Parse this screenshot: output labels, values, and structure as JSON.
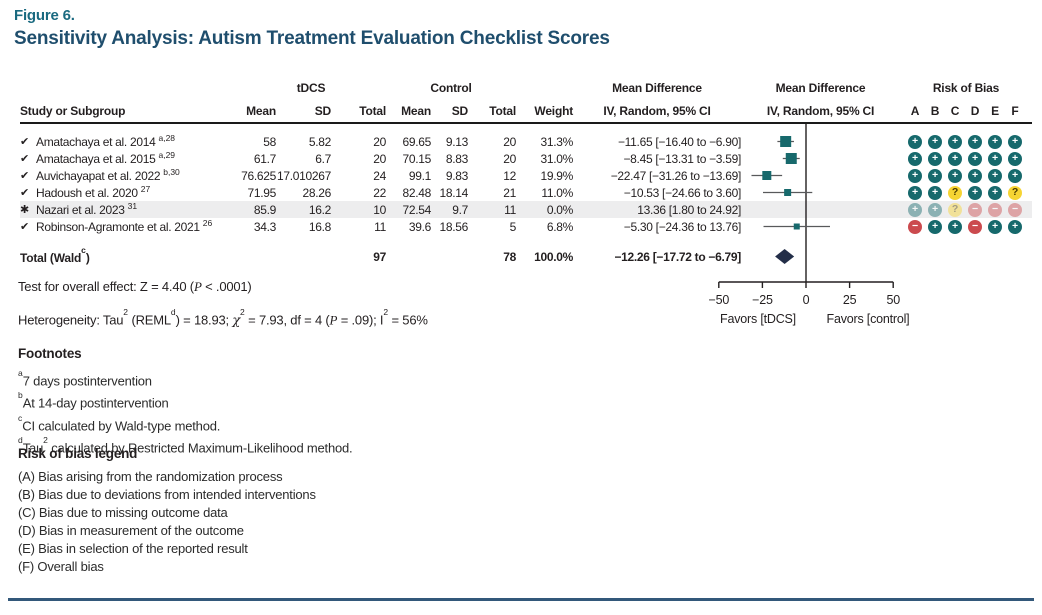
{
  "figure": {
    "label": "Figure 6.",
    "title": "Sensitivity Analysis: Autism Treatment Evaluation Checklist Scores"
  },
  "colors": {
    "label-color": "#1a6a80",
    "title-color": "#1f4e6d",
    "teal": "#16696c",
    "red": "#cb4a4e",
    "yellow": "#f6d433",
    "square": "#17696c",
    "diamond": "#232e48",
    "band": "#ededee",
    "navy-rule": "#33587a",
    "gray-line": "#58595b",
    "ink": "#231f20"
  },
  "table": {
    "group_headers": {
      "tdcs": "tDCS",
      "control": "Control"
    },
    "col_headers": {
      "study": "Study or Subgroup",
      "mean": "Mean",
      "sd": "SD",
      "total": "Total",
      "weight": "Weight",
      "md_title": "Mean Difference",
      "md_sub": "IV, Random, 95% CI",
      "rob_title": "Risk of Bias",
      "rob_letters": [
        "A",
        "B",
        "C",
        "D",
        "E",
        "F"
      ]
    },
    "rows": [
      {
        "marker": "✔",
        "name": "Amatachaya et al. 2014",
        "sup": "a,28",
        "tdcs_mean": "58",
        "tdcs_sd": "5.82",
        "tdcs_total": "20",
        "ctrl_mean": "69.65",
        "ctrl_sd": "9.13",
        "ctrl_total": "20",
        "weight": "31.3%",
        "md_text": "−11.65 [−16.40 to −6.90]",
        "bias": [
          "plus",
          "plus",
          "plus",
          "plus",
          "plus",
          "plus"
        ],
        "highlight": false,
        "faded": false
      },
      {
        "marker": "✔",
        "name": "Amatachaya et al. 2015",
        "sup": "a,29",
        "tdcs_mean": "61.7",
        "tdcs_sd": "6.7",
        "tdcs_total": "20",
        "ctrl_mean": "70.15",
        "ctrl_sd": "8.83",
        "ctrl_total": "20",
        "weight": "31.0%",
        "md_text": "−8.45 [−13.31 to −3.59]",
        "bias": [
          "plus",
          "plus",
          "plus",
          "plus",
          "plus",
          "plus"
        ],
        "highlight": false,
        "faded": false
      },
      {
        "marker": "✔",
        "name": "Auvichayapat et al. 2022",
        "sup": "b,30",
        "tdcs_mean": "76.625",
        "tdcs_sd": "17.010267",
        "tdcs_total": "24",
        "ctrl_mean": "99.1",
        "ctrl_sd": "9.83",
        "ctrl_total": "12",
        "weight": "19.9%",
        "md_text": "−22.47 [−31.26 to −13.69]",
        "bias": [
          "plus",
          "plus",
          "plus",
          "plus",
          "plus",
          "plus"
        ],
        "highlight": false,
        "faded": false
      },
      {
        "marker": "✔",
        "name": "Hadoush et al. 2020",
        "sup": "27",
        "tdcs_mean": "71.95",
        "tdcs_sd": "28.26",
        "tdcs_total": "22",
        "ctrl_mean": "82.48",
        "ctrl_sd": "18.14",
        "ctrl_total": "21",
        "weight": "11.0%",
        "md_text": "−10.53 [−24.66 to 3.60]",
        "bias": [
          "plus",
          "plus",
          "question",
          "plus",
          "plus",
          "question"
        ],
        "highlight": false,
        "faded": false
      },
      {
        "marker": "✱",
        "name": "Nazari et al. 2023",
        "sup": "31",
        "tdcs_mean": "85.9",
        "tdcs_sd": "16.2",
        "tdcs_total": "10",
        "ctrl_mean": "72.54",
        "ctrl_sd": "9.7",
        "ctrl_total": "11",
        "weight": "0.0%",
        "md_text": "13.36 [1.80 to 24.92]",
        "bias": [
          "plus",
          "plus",
          "question",
          "minus",
          "minus",
          "minus"
        ],
        "highlight": true,
        "faded": true
      },
      {
        "marker": "✔",
        "name": "Robinson-Agramonte et al. 2021",
        "sup": "26",
        "tdcs_mean": "34.3",
        "tdcs_sd": "16.8",
        "tdcs_total": "11",
        "ctrl_mean": "39.6",
        "ctrl_sd": "18.56",
        "ctrl_total": "5",
        "weight": "6.8%",
        "md_text": "−5.30 [−24.36 to 13.76]",
        "bias": [
          "minus",
          "plus",
          "plus",
          "minus",
          "plus",
          "plus"
        ],
        "highlight": false,
        "faded": false
      }
    ],
    "total": {
      "label": "Total (Wald",
      "label_sup": "c",
      "label_end": ")",
      "tdcs_total": "97",
      "ctrl_total": "78",
      "weight": "100.0%",
      "md_text": "−12.26 [−17.72 to −6.79]"
    }
  },
  "stats": {
    "overall": {
      "p1": "Test for overall effect: Z = 4.40 (",
      "pit": "P",
      "p2": " < .0001)"
    },
    "het": {
      "p1": "Heterogeneity: Tau",
      "s1": "2",
      "p2": " (REML",
      "s2": "d",
      "p3": ") = 18.93; ",
      "chi": "χ",
      "s3": "2",
      "p4": " = 7.93, df = 4 (",
      "pit": "P",
      "p5": " = .09); I",
      "s4": "2",
      "p6": " = 56%"
    }
  },
  "footnotes": {
    "title": "Footnotes",
    "items": [
      {
        "sup": "a",
        "text": "7 days postintervention"
      },
      {
        "sup": "b",
        "text": "At 14-day postintervention"
      },
      {
        "sup": "c",
        "text": "CI calculated by Wald-type method."
      },
      {
        "sup": "d",
        "pre": "Tau",
        "sup2": "2",
        "text": " calculated by Restricted Maximum-Likelihood method."
      }
    ]
  },
  "rob_legend": {
    "title": "Risk of bias legend",
    "items": [
      "(A) Bias arising from the randomization process",
      "(B) Bias due to deviations from intended interventions",
      "(C) Bias due to missing outcome data",
      "(D) Bias in measurement of the outcome",
      "(E) Bias in selection of the reported result",
      "(F) Overall bias"
    ]
  },
  "chart_data": {
    "type": "scatter",
    "subtype": "forest-plot",
    "title": "Sensitivity Analysis: Autism Treatment Evaluation Checklist Scores",
    "effect_measure": "Mean Difference, IV, Random, 95% CI",
    "xlim": [
      -50,
      50
    ],
    "xticks": [
      -50,
      -25,
      0,
      25,
      50
    ],
    "tick_labels": [
      "−50",
      "−25",
      "0",
      "25",
      "50"
    ],
    "favors_left": "Favors [tDCS]",
    "favors_right": "Favors [control]",
    "studies": [
      {
        "name": "Amatachaya et al. 2014",
        "md": -11.65,
        "ci_low": -16.4,
        "ci_high": -6.9,
        "weight_pct": 31.3
      },
      {
        "name": "Amatachaya et al. 2015",
        "md": -8.45,
        "ci_low": -13.31,
        "ci_high": -3.59,
        "weight_pct": 31.0
      },
      {
        "name": "Auvichayapat et al. 2022",
        "md": -22.47,
        "ci_low": -31.26,
        "ci_high": -13.69,
        "weight_pct": 19.9
      },
      {
        "name": "Hadoush et al. 2020",
        "md": -10.53,
        "ci_low": -24.66,
        "ci_high": 3.6,
        "weight_pct": 11.0
      },
      {
        "name": "Nazari et al. 2023",
        "md": 13.36,
        "ci_low": 1.8,
        "ci_high": 24.92,
        "weight_pct": 0.0,
        "excluded": true
      },
      {
        "name": "Robinson-Agramonte et al. 2021",
        "md": -5.3,
        "ci_low": -24.36,
        "ci_high": 13.76,
        "weight_pct": 6.8
      }
    ],
    "total": {
      "label": "Total (Wald)",
      "md": -12.26,
      "ci_low": -17.72,
      "ci_high": -6.79,
      "weight_pct": 100.0,
      "n_tdcs": 97,
      "n_control": 78
    },
    "heterogeneity": {
      "tau2": 18.93,
      "chi2": 7.93,
      "df": 4,
      "p": 0.09,
      "i2_pct": 56
    },
    "overall_effect": {
      "z": 4.4,
      "p": "< .0001"
    }
  }
}
